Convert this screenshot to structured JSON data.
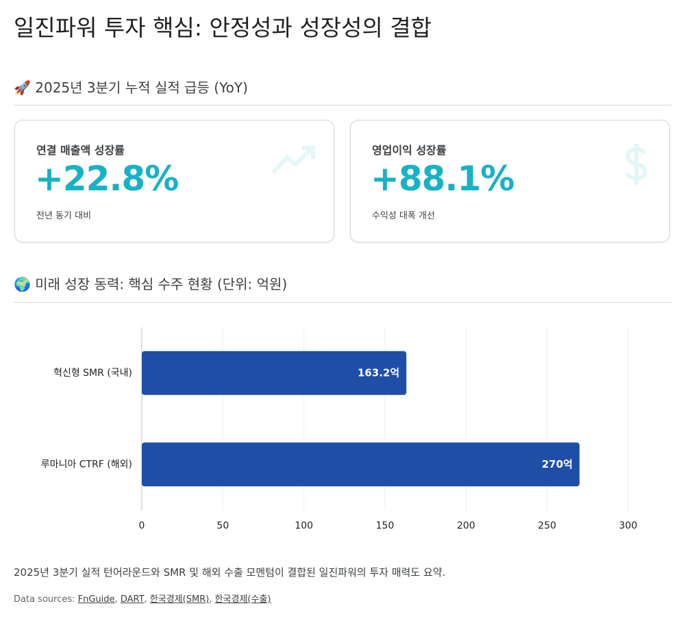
{
  "header": {
    "title": "일진파워 투자 핵심: 안정성과 성장성의 결합"
  },
  "section1": {
    "heading": "🚀 2025년 3분기 누적 실적 급등 (YoY)"
  },
  "cards": [
    {
      "label": "연결 매출액 성장률",
      "value": "+22.8%",
      "note": "전년 동기 대비"
    },
    {
      "label": "영업이익 성장률",
      "value": "+88.1%",
      "note": "수익성 대폭 개선"
    }
  ],
  "section2": {
    "heading": "🌍 미래 성장 동력: 핵심 수주 현황 (단위: 억원)"
  },
  "chart_data": {
    "type": "hbar",
    "categories": [
      "혁신형 SMR (국내)",
      "루마니아 CTRF (해외)"
    ],
    "values": [
      163.2,
      270
    ],
    "value_labels": [
      "163.2억",
      "270억"
    ],
    "color": "#1f4ea6",
    "xlim": [
      0,
      300
    ],
    "xticks": [
      0,
      50,
      100,
      150,
      200,
      250,
      300
    ],
    "grid": true
  },
  "footer": {
    "summary": "2025년 3분기 실적 턴어라운드와 SMR 및 해외 수출 모멘텀이 결합된 일진파워의 투자 매력도 요약.",
    "sources_label": "Data sources:",
    "separator": ",",
    "sources": [
      "FnGuide",
      "DART",
      "한국경제(SMR)",
      "한국경제(수출)"
    ]
  }
}
